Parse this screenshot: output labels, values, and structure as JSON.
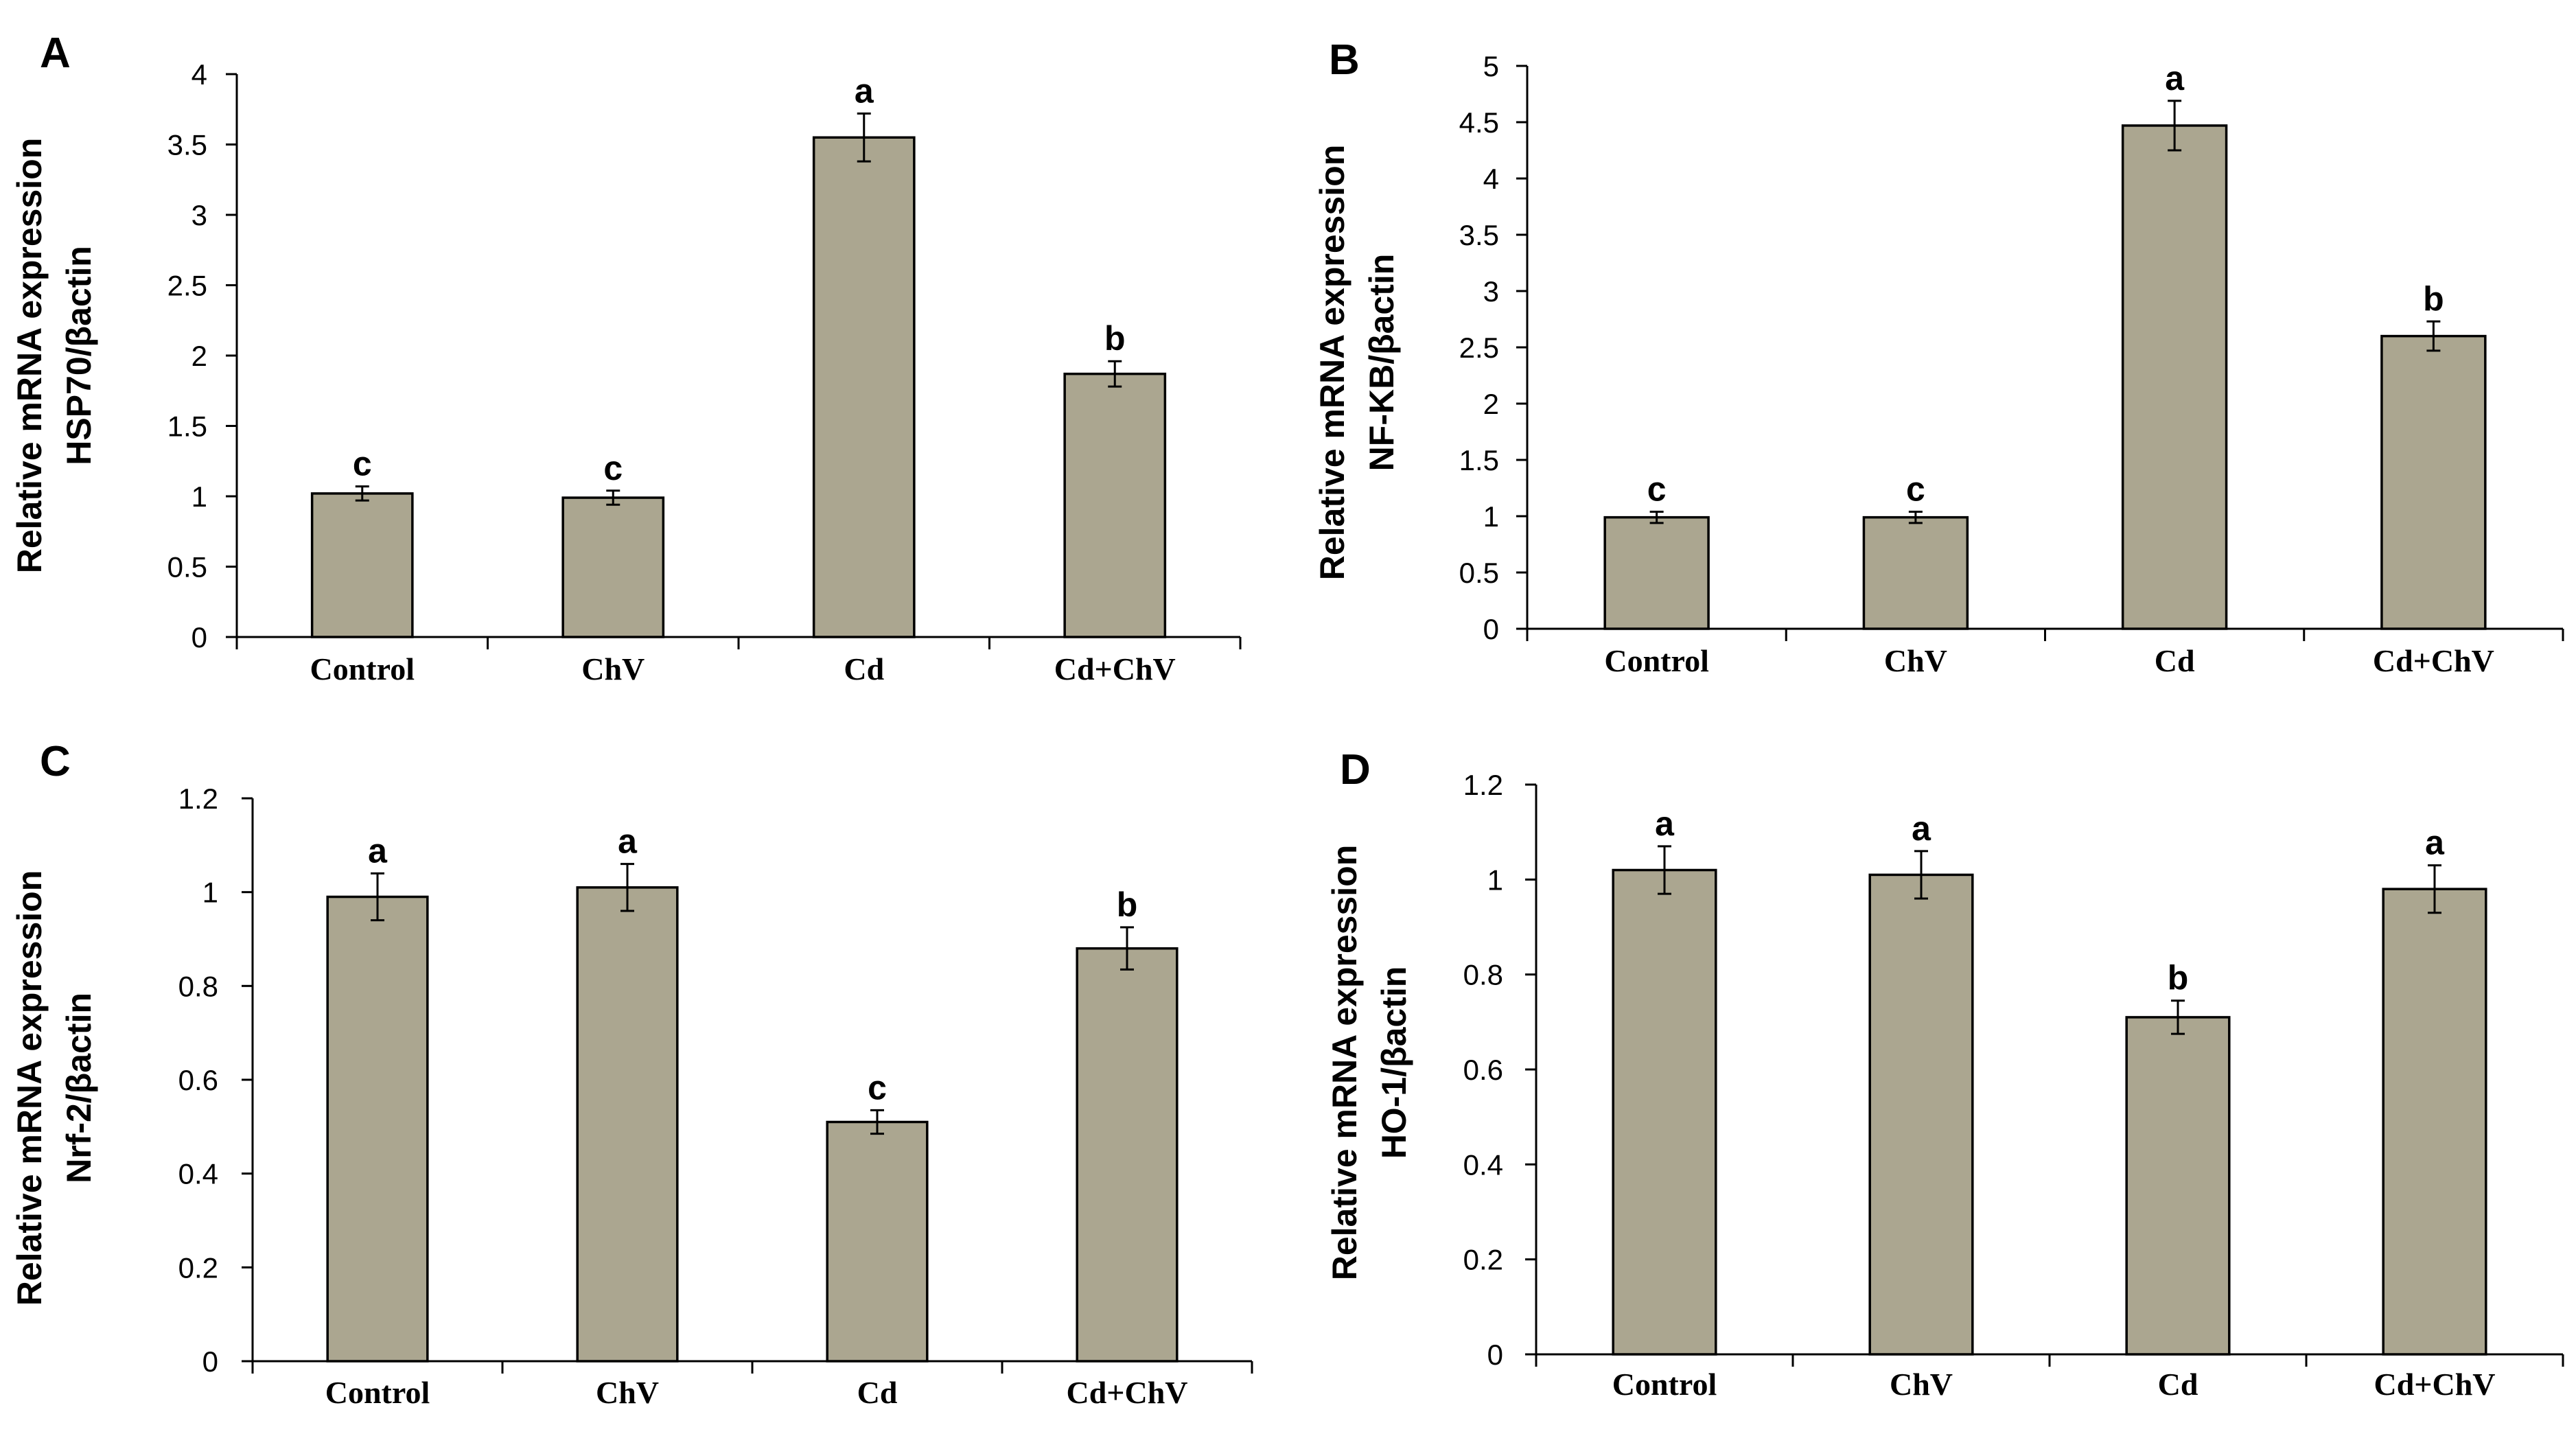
{
  "figure": {
    "bar_color": "#aba690",
    "background": "#ffffff"
  },
  "chart_data": [
    {
      "panel": "A",
      "type": "bar",
      "categories": [
        "Control",
        "ChV",
        "Cd",
        "Cd+ChV"
      ],
      "values": [
        1.02,
        0.99,
        3.55,
        1.87
      ],
      "errors": [
        0.05,
        0.05,
        0.17,
        0.09
      ],
      "significance": [
        "c",
        "c",
        "a",
        "b"
      ],
      "ylabel_line1": "Relative mRNA expression",
      "ylabel_line2": "HSP70/βactin",
      "ylim": [
        0,
        4
      ],
      "yticks": [
        0,
        0.5,
        1,
        1.5,
        2,
        2.5,
        3,
        3.5,
        4
      ],
      "ytick_labels": [
        "0",
        "0.5",
        "1",
        "1.5",
        "2",
        "2.5",
        "3",
        "3.5",
        "4"
      ]
    },
    {
      "panel": "B",
      "type": "bar",
      "categories": [
        "Control",
        "ChV",
        "Cd",
        "Cd+ChV"
      ],
      "values": [
        0.99,
        0.99,
        4.47,
        2.6
      ],
      "errors": [
        0.05,
        0.05,
        0.22,
        0.13
      ],
      "significance": [
        "c",
        "c",
        "a",
        "b"
      ],
      "ylabel_line1": "Relative mRNA expression",
      "ylabel_line2": "NF-KB/βactin",
      "ylim": [
        0,
        5
      ],
      "yticks": [
        0,
        0.5,
        1,
        1.5,
        2,
        2.5,
        3,
        3.5,
        4,
        4.5,
        5
      ],
      "ytick_labels": [
        "0",
        "0.5",
        "1",
        "1.5",
        "2",
        "2.5",
        "3",
        "3.5",
        "4",
        "4.5",
        "5"
      ]
    },
    {
      "panel": "C",
      "type": "bar",
      "categories": [
        "Control",
        "ChV",
        "Cd",
        "Cd+ChV"
      ],
      "values": [
        0.99,
        1.01,
        0.51,
        0.88
      ],
      "errors": [
        0.05,
        0.05,
        0.025,
        0.045
      ],
      "significance": [
        "a",
        "a",
        "c",
        "b"
      ],
      "ylabel_line1": "Relative mRNA expression",
      "ylabel_line2": "Nrf-2/βactin",
      "ylim": [
        0,
        1.2
      ],
      "yticks": [
        0,
        0.2,
        0.4,
        0.6,
        0.8,
        1,
        1.2
      ],
      "ytick_labels": [
        "0",
        "0.2",
        "0.4",
        "0.6",
        "0.8",
        "1",
        "1.2"
      ]
    },
    {
      "panel": "D",
      "type": "bar",
      "categories": [
        "Control",
        "ChV",
        "Cd",
        "Cd+ChV"
      ],
      "values": [
        1.02,
        1.01,
        0.71,
        0.98
      ],
      "errors": [
        0.05,
        0.05,
        0.035,
        0.05
      ],
      "significance": [
        "a",
        "a",
        "b",
        "a"
      ],
      "ylabel_line1": "Relative mRNA expression",
      "ylabel_line2": "HO-1/βactin",
      "ylim": [
        0,
        1.2
      ],
      "yticks": [
        0,
        0.2,
        0.4,
        0.6,
        0.8,
        1,
        1.2
      ],
      "ytick_labels": [
        "0",
        "0.2",
        "0.4",
        "0.6",
        "0.8",
        "1",
        "1.2"
      ]
    }
  ]
}
